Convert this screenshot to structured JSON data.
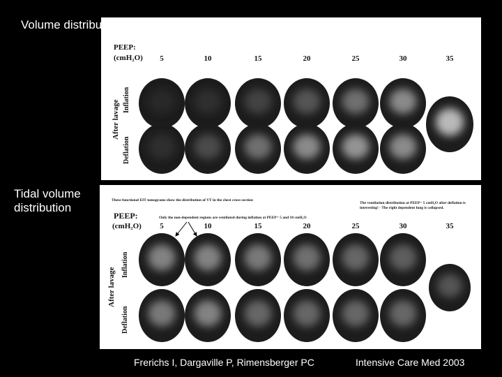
{
  "side_labels": [
    "Volume distribution",
    "Tidal volume distribution"
  ],
  "panels": [
    {
      "peep_label": "PEEP:",
      "peep_unit": "(cmH₂O)",
      "columns": [
        "5",
        "10",
        "15",
        "20",
        "25",
        "30",
        "35"
      ],
      "group_label": "After lavage",
      "rows": [
        "Inflation",
        "Deflation"
      ]
    },
    {
      "peep_label": "PEEP:",
      "peep_unit": "(cmH₂O)",
      "columns": [
        "5",
        "10",
        "15",
        "20",
        "25",
        "30",
        "35"
      ],
      "group_label": "After lavage",
      "rows": [
        "Inflation",
        "Deflation"
      ],
      "notes": [
        "These functional EIT tomograms show the distribution of VT in the chest cross-section",
        "Only the non-dependent regions are ventilated during inflation at PEEP= 5 and 10 cmH₂O",
        "The ventilation distribution at PEEP= 5 cmH₂O after deflation is interesting! - The right dependent lung is collapsed."
      ]
    }
  ],
  "citation": {
    "authors": "Frerichs I, Dargaville P, Rimensberger PC",
    "journal": "Intensive Care Med 2003"
  }
}
